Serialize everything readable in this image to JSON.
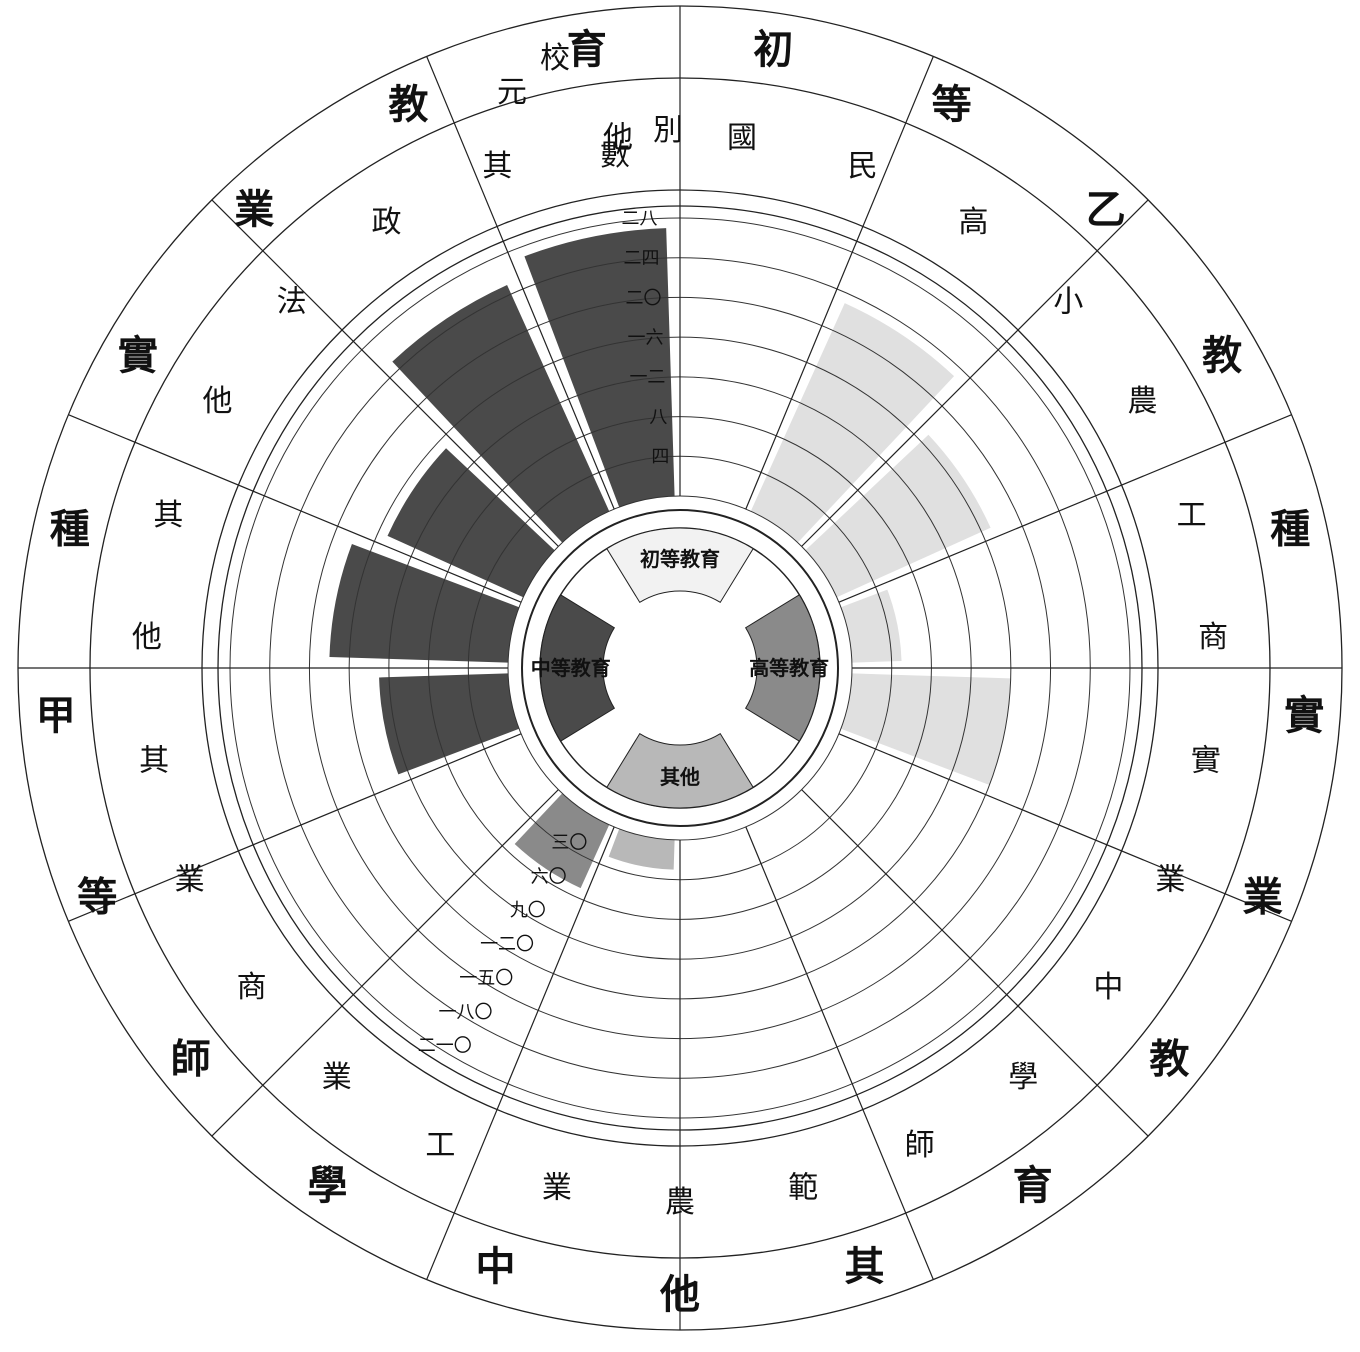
{
  "chart_data": {
    "type": "polar-bar",
    "title": "",
    "radial_ticks": [
      "四",
      "八",
      "一二",
      "一六",
      "二〇",
      "二四",
      "二八"
    ],
    "radial_ticks_lower": [
      "三〇",
      "六〇",
      "九〇",
      "一二〇",
      "一五〇",
      "一八〇",
      "二一〇"
    ],
    "rmax": 28,
    "center_categories": [
      {
        "name": "初等教育",
        "color": "#f2f2f2"
      },
      {
        "name": "高等教育",
        "color": "#8a8a8a"
      },
      {
        "name": "其他",
        "color": "#b8b8b8"
      },
      {
        "name": "中等教育",
        "color": "#4a4a4a"
      }
    ],
    "corner_labels": {
      "top": "校",
      "right": "別",
      "left": "元",
      "bottom": "數"
    },
    "sectors": [
      {
        "group": "初等教育",
        "name": "初等國民",
        "value": 0,
        "color": "#e0e0e0"
      },
      {
        "group": "初等教育",
        "name": "高等小",
        "value": 23,
        "color": "#e0e0e0"
      },
      {
        "group": "乙種實業教育",
        "name": "乙農業",
        "value": 17,
        "color": "#e0e0e0"
      },
      {
        "group": "乙種實業教育",
        "name": "乙工業",
        "value": 5,
        "color": "#e0e0e0"
      },
      {
        "group": "乙種實業教育",
        "name": "乙商業",
        "value": 16,
        "color": "#e0e0e0"
      },
      {
        "group": "實業教育",
        "name": "實業教育",
        "value": 0,
        "color": "#e0e0e0"
      },
      {
        "group": "其他",
        "name": "其他",
        "value": 0,
        "color": "#b8b8b8"
      },
      {
        "group": "其他",
        "name": "其他",
        "value": 0,
        "color": "#b8b8b8"
      },
      {
        "group": "其他",
        "name": "其他",
        "value": 3,
        "color": "#b8b8b8"
      },
      {
        "group": "高等教育",
        "name": "高等教育",
        "value": 7,
        "color": "#8a8a8a"
      },
      {
        "group": "中等教育",
        "name": "中學",
        "value": 0,
        "color": "#4a4a4a"
      },
      {
        "group": "中等教育",
        "name": "師範",
        "value": 13,
        "color": "#4a4a4a"
      },
      {
        "group": "中等教育",
        "name": "甲農業",
        "value": 18,
        "color": "#4a4a4a"
      },
      {
        "group": "中等教育",
        "name": "甲工業",
        "value": 15,
        "color": "#4a4a4a"
      },
      {
        "group": "中等教育",
        "name": "甲商業",
        "value": 25,
        "color": "#4a4a4a"
      },
      {
        "group": "中等教育",
        "name": "甲商業",
        "value": 27,
        "color": "#4a4a4a"
      }
    ],
    "outer_text": {
      "ring_outer": [
        "初",
        "等",
        "乙",
        "教",
        "種",
        "實",
        "業",
        "教",
        "育",
        "其",
        "他",
        "中",
        "學",
        "師",
        "等",
        "甲",
        "種",
        "實",
        "業",
        "教",
        "育"
      ],
      "ring_mid": [
        "國",
        "民",
        "高",
        "小",
        "農",
        "工",
        "商",
        "實",
        "業",
        "中",
        "學",
        "師",
        "範",
        "農",
        "業",
        "工",
        "業",
        "商",
        "業",
        "其",
        "他",
        "其",
        "他",
        "法",
        "政",
        "其",
        "他"
      ]
    },
    "grid": true,
    "legend": "center"
  }
}
